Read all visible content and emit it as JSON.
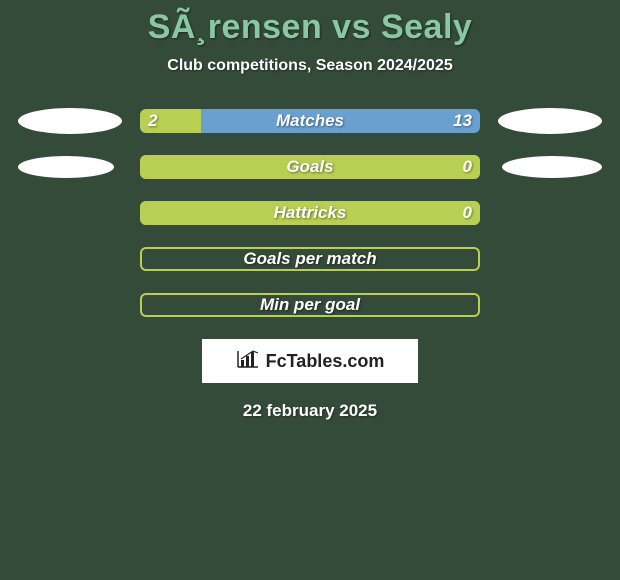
{
  "background_color": "#354b3a",
  "title": {
    "text": "SÃ¸rensen vs Sealy",
    "color": "#89c8a0",
    "fontsize": 34
  },
  "subtitle": {
    "text": "Club competitions, Season 2024/2025",
    "color": "#ffffff",
    "fontsize": 16
  },
  "bar_colors": {
    "left_fill": "#b8cf53",
    "right_fill": "#6aa0d0",
    "empty_border": "#b8cf53",
    "label_color": "#ffffff",
    "value_color": "#ffffff"
  },
  "ellipse": {
    "color": "#ffffff",
    "row0": {
      "left_w": 104,
      "left_h": 26,
      "right_w": 104,
      "right_h": 26
    },
    "row1": {
      "left_w": 96,
      "left_h": 22,
      "right_w": 100,
      "right_h": 22
    }
  },
  "rows": [
    {
      "label": "Matches",
      "left": "2",
      "right": "13",
      "left_pct": 18,
      "type": "split",
      "show_ellipses": true,
      "ell_key": "row0",
      "bar_fontsize": 17
    },
    {
      "label": "Goals",
      "left": "",
      "right": "0",
      "left_pct": 100,
      "type": "solid_left",
      "show_ellipses": true,
      "ell_key": "row1",
      "bar_fontsize": 17
    },
    {
      "label": "Hattricks",
      "left": "",
      "right": "0",
      "left_pct": 100,
      "type": "solid_left",
      "show_ellipses": false,
      "bar_fontsize": 17
    },
    {
      "label": "Goals per match",
      "left": "",
      "right": "",
      "left_pct": 0,
      "type": "empty",
      "show_ellipses": false,
      "bar_fontsize": 17
    },
    {
      "label": "Min per goal",
      "left": "",
      "right": "",
      "left_pct": 0,
      "type": "empty",
      "show_ellipses": false,
      "bar_fontsize": 17
    }
  ],
  "logo": {
    "text": "FcTables.com",
    "icon_name": "bar-chart-icon",
    "fontsize": 18
  },
  "date": {
    "text": "22 february 2025",
    "color": "#ffffff",
    "fontsize": 17
  }
}
